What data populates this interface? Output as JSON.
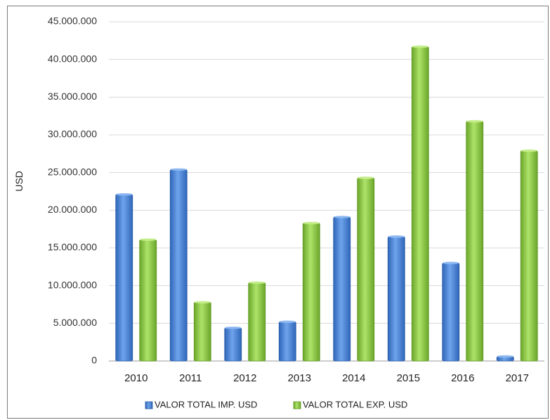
{
  "chart_data": {
    "type": "bar",
    "ylabel": "USD",
    "xlabel": "",
    "ylim": [
      0,
      45000000
    ],
    "yticks": [
      0,
      5000000,
      10000000,
      15000000,
      20000000,
      25000000,
      30000000,
      35000000,
      40000000,
      45000000
    ],
    "ytick_labels": [
      "0",
      "5.000.000",
      "10.000.000",
      "15.000.000",
      "20.000.000",
      "25.000.000",
      "30.000.000",
      "35.000.000",
      "40.000.000",
      "45.000.000"
    ],
    "categories": [
      "2010",
      "2011",
      "2012",
      "2013",
      "2014",
      "2015",
      "2016",
      "2017"
    ],
    "series": [
      {
        "name": "VALOR TOTAL IMP. USD",
        "color": "#4a86d8",
        "values": [
          22100000,
          25400000,
          4400000,
          5200000,
          19100000,
          16500000,
          13000000,
          600000
        ]
      },
      {
        "name": "VALOR TOTAL EXP. USD",
        "color": "#8ccc3f",
        "values": [
          16100000,
          7800000,
          10400000,
          18300000,
          24300000,
          41700000,
          31800000,
          27900000
        ]
      }
    ],
    "grid": true,
    "legend_position": "bottom"
  }
}
